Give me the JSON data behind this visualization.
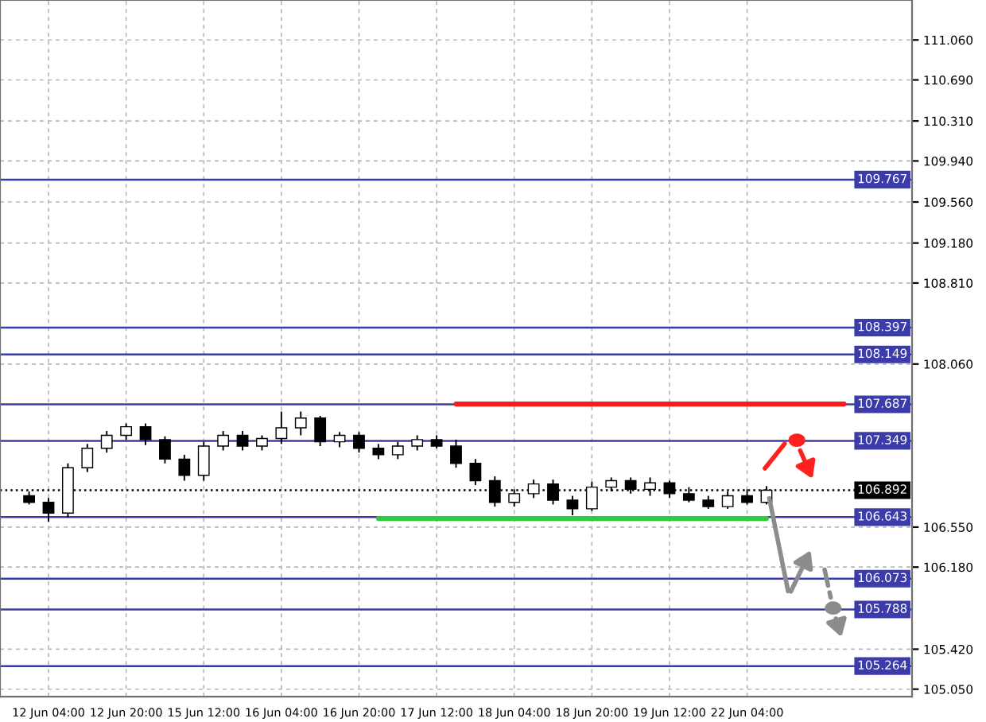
{
  "chart_data": {
    "type": "candlestick",
    "categories": [
      null,
      "12 Jun 04:00",
      null,
      null,
      null,
      "12 Jun 20:00",
      null,
      null,
      null,
      "15 Jun 12:00",
      null,
      null,
      null,
      "16 Jun 04:00",
      null,
      null,
      null,
      "16 Jun 20:00",
      null,
      null,
      null,
      "17 Jun 12:00",
      null,
      null,
      null,
      "18 Jun 04:00",
      null,
      null,
      null,
      "18 Jun 20:00",
      null,
      null,
      null,
      "19 Jun 12:00",
      null,
      null,
      null,
      "22 Jun 04:00",
      null,
      null,
      null,
      null,
      null,
      null,
      null,
      null
    ],
    "ohlc": [
      [
        106.84,
        106.88,
        106.76,
        106.78
      ],
      [
        106.78,
        106.82,
        106.6,
        106.68
      ],
      [
        106.68,
        107.14,
        106.64,
        107.1
      ],
      [
        107.1,
        107.32,
        107.06,
        107.28
      ],
      [
        107.28,
        107.44,
        107.24,
        107.4
      ],
      [
        107.4,
        107.51,
        107.36,
        107.48
      ],
      [
        107.48,
        107.51,
        107.31,
        107.36
      ],
      [
        107.36,
        107.39,
        107.14,
        107.18
      ],
      [
        107.18,
        107.22,
        106.98,
        107.03
      ],
      [
        107.03,
        107.34,
        106.98,
        107.3
      ],
      [
        107.3,
        107.44,
        107.26,
        107.4
      ],
      [
        107.4,
        107.44,
        107.26,
        107.3
      ],
      [
        107.3,
        107.4,
        107.26,
        107.37
      ],
      [
        107.37,
        107.62,
        107.32,
        107.47
      ],
      [
        107.47,
        107.62,
        107.4,
        107.56
      ],
      [
        107.56,
        107.58,
        107.3,
        107.34
      ],
      [
        107.34,
        107.43,
        107.29,
        107.4
      ],
      [
        107.4,
        107.43,
        107.24,
        107.28
      ],
      [
        107.28,
        107.32,
        107.18,
        107.22
      ],
      [
        107.22,
        107.34,
        107.18,
        107.3
      ],
      [
        107.3,
        107.4,
        107.26,
        107.36
      ],
      [
        107.36,
        107.4,
        107.28,
        107.3
      ],
      [
        107.3,
        107.36,
        107.1,
        107.14
      ],
      [
        107.14,
        107.18,
        106.94,
        106.98
      ],
      [
        106.98,
        107.02,
        106.74,
        106.78
      ],
      [
        106.78,
        106.9,
        106.74,
        106.86
      ],
      [
        106.86,
        106.99,
        106.82,
        106.95
      ],
      [
        106.95,
        106.99,
        106.76,
        106.8
      ],
      [
        106.8,
        106.84,
        106.66,
        106.72
      ],
      [
        106.72,
        106.97,
        106.7,
        106.92
      ],
      [
        106.92,
        107.01,
        106.88,
        106.98
      ],
      [
        106.98,
        107.01,
        106.86,
        106.9
      ],
      [
        106.9,
        107.01,
        106.84,
        106.96
      ],
      [
        106.96,
        106.98,
        106.82,
        106.86
      ],
      [
        106.86,
        106.92,
        106.78,
        106.8
      ],
      [
        106.8,
        106.84,
        106.72,
        106.74
      ],
      [
        106.74,
        106.88,
        106.72,
        106.84
      ],
      [
        106.84,
        106.9,
        106.76,
        106.78
      ],
      [
        106.78,
        106.93,
        106.76,
        106.892
      ],
      null,
      null,
      null,
      null,
      null,
      null,
      null
    ],
    "series": [
      {
        "type": "line",
        "color": "#ff1a1a",
        "values": [
          null,
          null,
          null,
          null,
          null,
          null,
          null,
          null,
          null,
          null,
          null,
          null,
          null,
          null,
          null,
          null,
          null,
          null,
          null,
          null,
          null,
          null,
          107.69,
          107.69,
          107.69,
          107.69,
          107.69,
          107.69,
          107.69,
          107.69,
          107.69,
          107.69,
          107.69,
          107.69,
          107.69,
          107.69,
          107.69,
          107.69,
          107.69,
          107.69,
          107.69,
          107.69,
          107.69,
          null,
          null,
          null
        ]
      },
      {
        "type": "line",
        "color": "#2ecc40",
        "values": [
          null,
          null,
          null,
          null,
          null,
          null,
          null,
          null,
          null,
          null,
          null,
          null,
          null,
          null,
          null,
          null,
          null,
          null,
          106.63,
          106.63,
          106.63,
          106.63,
          106.63,
          106.63,
          106.63,
          106.63,
          106.63,
          106.63,
          106.63,
          106.63,
          106.63,
          106.63,
          106.63,
          106.63,
          106.63,
          106.63,
          106.63,
          106.63,
          106.63,
          null,
          null,
          null,
          null,
          null,
          null,
          null
        ]
      }
    ],
    "ylim": [
      104.98,
      111.43
    ],
    "yticks": [
      {
        "value": 105.05,
        "label": "105.050"
      },
      {
        "value": 105.42,
        "label": "105.420"
      },
      {
        "value": 106.18,
        "label": "106.180"
      },
      {
        "value": 106.55,
        "label": "106.550"
      },
      {
        "value": 108.06,
        "label": "108.060"
      },
      {
        "value": 108.81,
        "label": "108.810"
      },
      {
        "value": 109.18,
        "label": "109.180"
      },
      {
        "value": 109.56,
        "label": "109.560"
      },
      {
        "value": 109.94,
        "label": "109.940"
      },
      {
        "value": 110.31,
        "label": "110.310"
      },
      {
        "value": 110.69,
        "label": "110.690"
      },
      {
        "value": 111.06,
        "label": "111.060"
      }
    ],
    "ref_lines": [
      {
        "axis": "y",
        "value": 109.767,
        "label": "109.767",
        "color": "#3c3ca8"
      },
      {
        "axis": "y",
        "value": 108.397,
        "label": "108.397",
        "color": "#3c3ca8"
      },
      {
        "axis": "y",
        "value": 108.149,
        "label": "108.149",
        "color": "#3c3ca8"
      },
      {
        "axis": "y",
        "value": 107.687,
        "label": "107.687",
        "color": "#3c3ca8"
      },
      {
        "axis": "y",
        "value": 107.349,
        "label": "107.349",
        "color": "#3c3ca8"
      },
      {
        "axis": "y",
        "value": 106.892,
        "label": "106.892",
        "color": "#000000",
        "line_style": "dotted"
      },
      {
        "axis": "y",
        "value": 106.643,
        "label": "106.643",
        "color": "#3c3ca8"
      },
      {
        "axis": "y",
        "value": 106.073,
        "label": "106.073",
        "color": "#3c3ca8"
      },
      {
        "axis": "y",
        "value": 105.788,
        "label": "105.788",
        "color": "#3c3ca8"
      },
      {
        "axis": "y",
        "value": 105.264,
        "label": "105.264",
        "color": "#3c3ca8"
      }
    ],
    "grid": true,
    "legend": false
  }
}
